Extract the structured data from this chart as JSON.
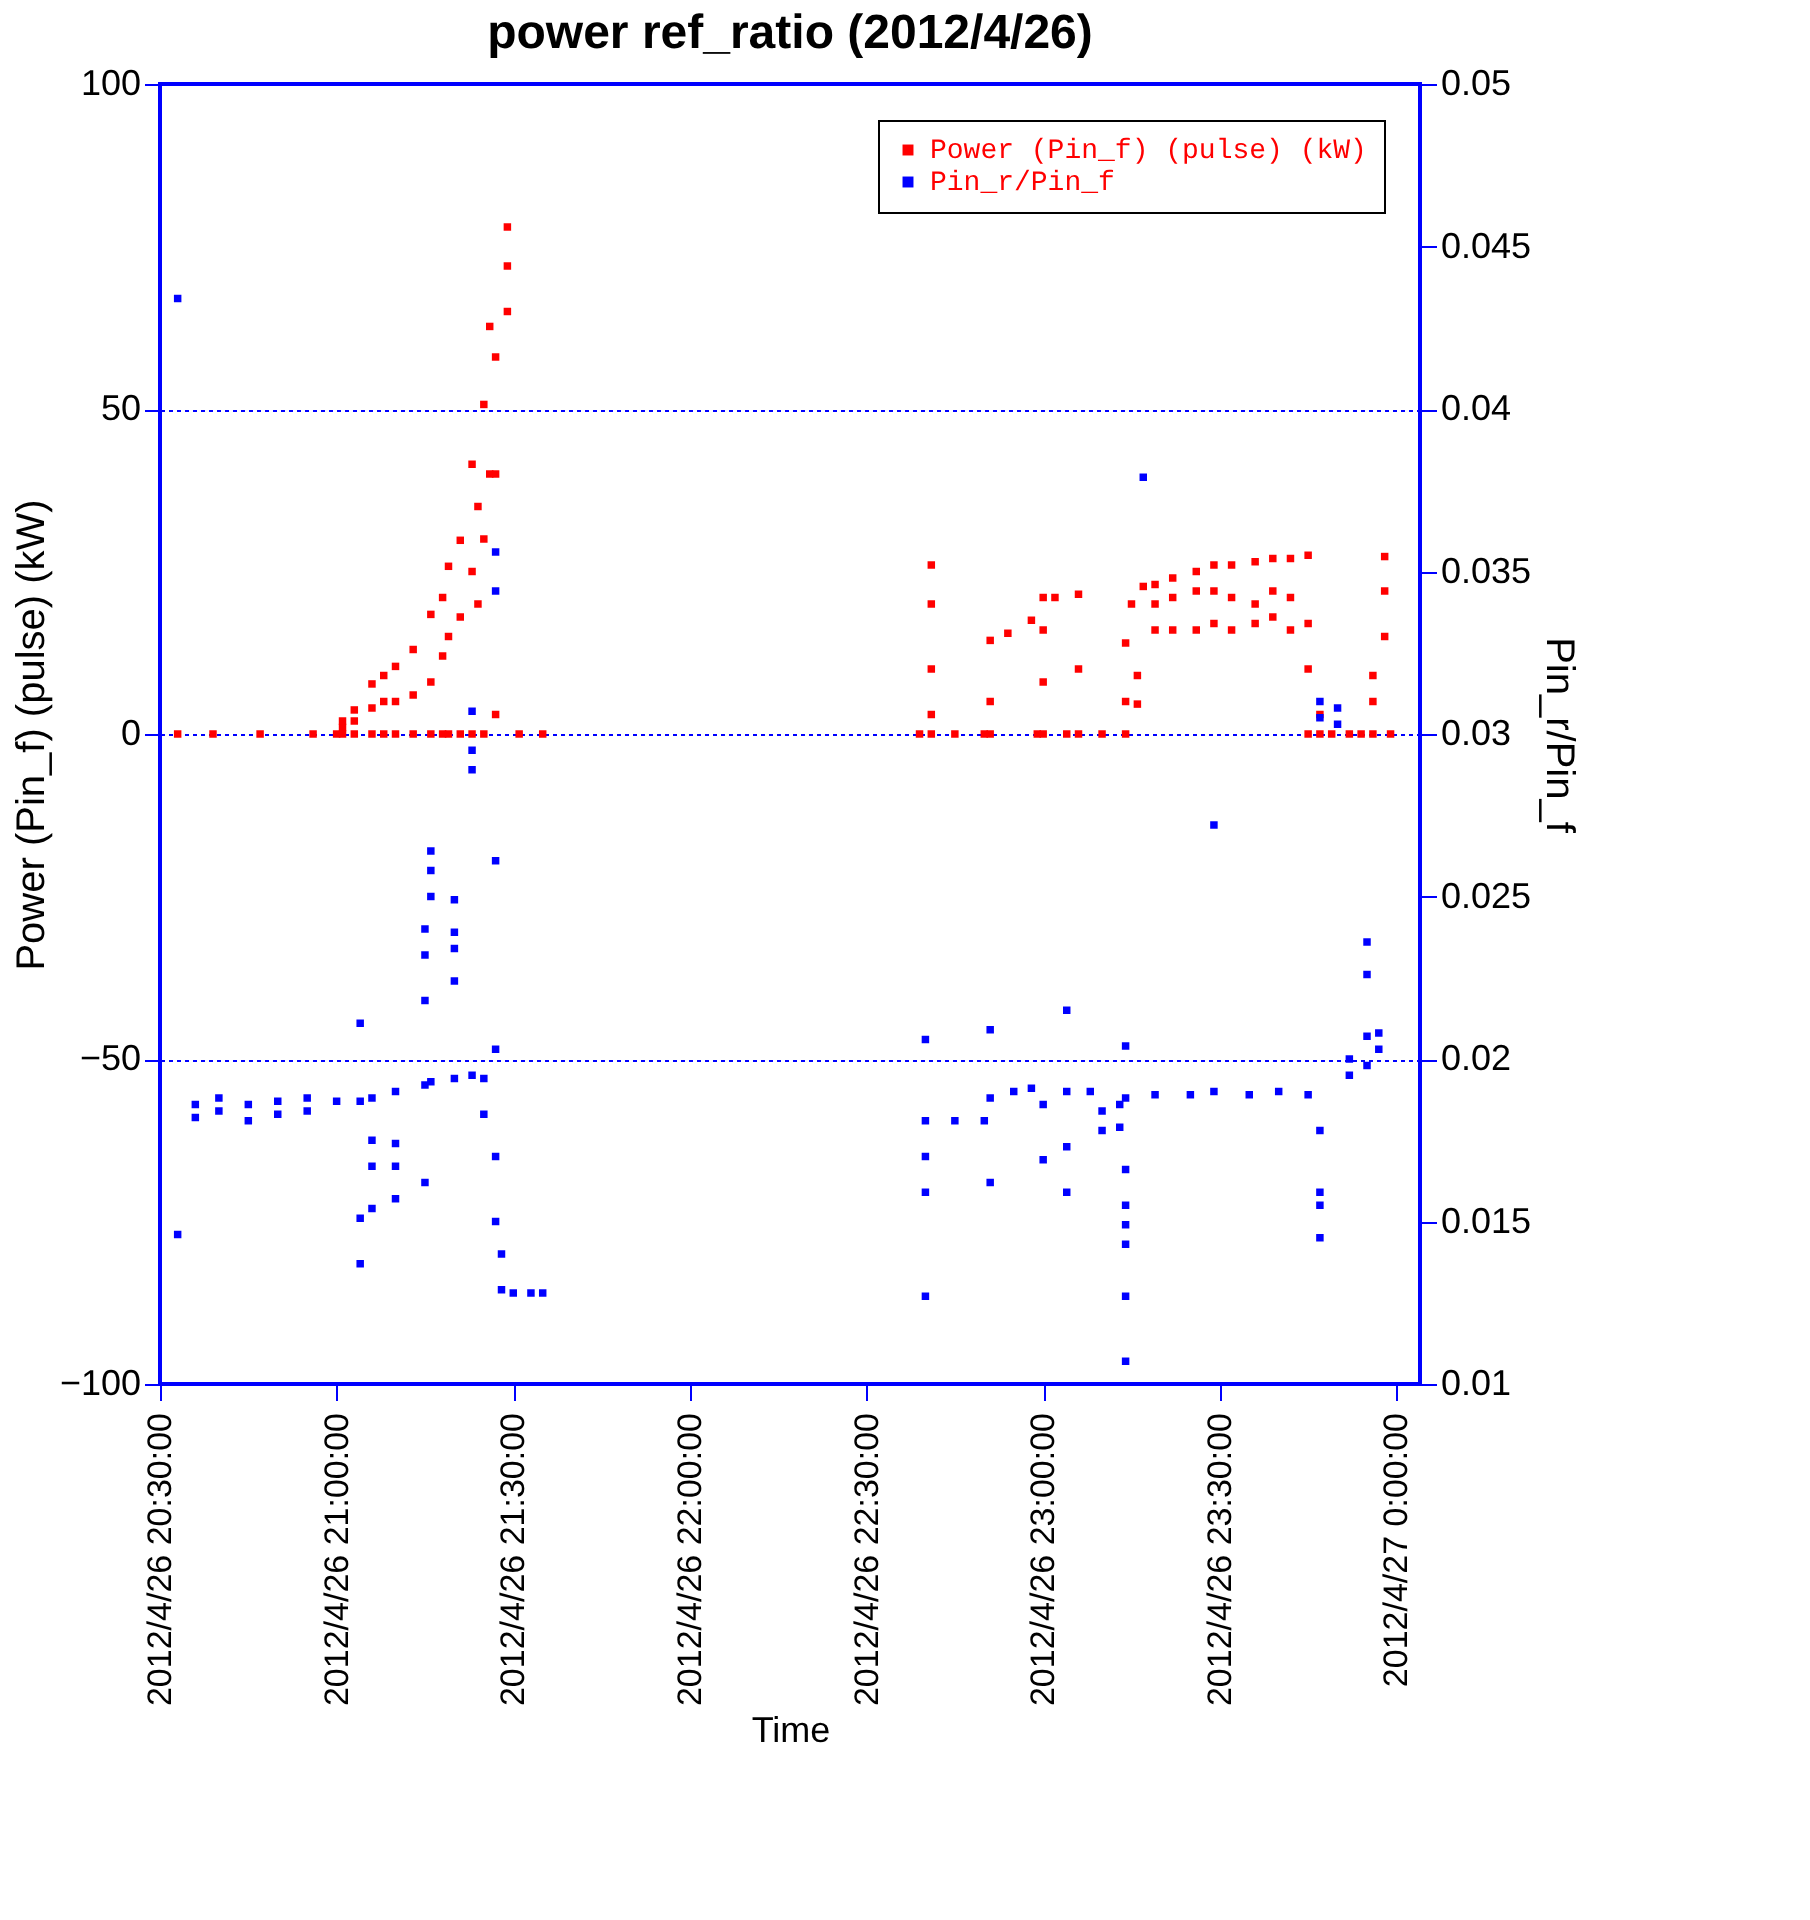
{
  "chart_data": {
    "type": "scatter",
    "title": "power ref_ratio (2012/4/26)",
    "xlabel": "Time",
    "ylabel": "Power (Pin_f) (pulse) (kW)",
    "y2label": "Pin_r/Pin_f",
    "xlim": [
      "2012-04-26T20:30",
      "2012-04-27T00:04"
    ],
    "xticks": [
      {
        "value": "2012-04-26T20:30",
        "label": "2012/4/26 20:30:00"
      },
      {
        "value": "2012-04-26T21:00",
        "label": "2012/4/26 21:00:00"
      },
      {
        "value": "2012-04-26T21:30",
        "label": "2012/4/26 21:30:00"
      },
      {
        "value": "2012-04-26T22:00",
        "label": "2012/4/26 22:00:00"
      },
      {
        "value": "2012-04-26T22:30",
        "label": "2012/4/26 22:30:00"
      },
      {
        "value": "2012-04-26T23:00",
        "label": "2012/4/26 23:00:00"
      },
      {
        "value": "2012-04-26T23:30",
        "label": "2012/4/26 23:30:00"
      },
      {
        "value": "2012-04-27T00:00",
        "label": "2012/4/27 0:00:00"
      }
    ],
    "ylim": [
      -100,
      100
    ],
    "yticks": [
      -100,
      -50,
      0,
      50,
      100
    ],
    "y2lim": [
      0.01,
      0.05
    ],
    "y2ticks": [
      0.01,
      0.015,
      0.02,
      0.025,
      0.03,
      0.035,
      0.04,
      0.045,
      0.05
    ],
    "grid": "y",
    "legend": "top right",
    "marker": "square",
    "series": [
      {
        "name": "Power (Pin_f) (pulse) (kW)",
        "color": "#ff0000",
        "x": [
          "2012-04-26T20:33",
          "2012-04-26T20:39",
          "2012-04-26T20:47",
          "2012-04-26T20:56",
          "2012-04-26T21:00",
          "2012-04-26T21:01",
          "2012-04-26T21:01",
          "2012-04-26T21:01",
          "2012-04-26T21:03",
          "2012-04-26T21:03",
          "2012-04-26T21:03",
          "2012-04-26T21:06",
          "2012-04-26T21:06",
          "2012-04-26T21:06",
          "2012-04-26T21:08",
          "2012-04-26T21:08",
          "2012-04-26T21:08",
          "2012-04-26T21:10",
          "2012-04-26T21:10",
          "2012-04-26T21:10",
          "2012-04-26T21:13",
          "2012-04-26T21:13",
          "2012-04-26T21:13",
          "2012-04-26T21:16",
          "2012-04-26T21:16",
          "2012-04-26T21:16",
          "2012-04-26T21:18",
          "2012-04-26T21:18",
          "2012-04-26T21:18",
          "2012-04-26T21:19",
          "2012-04-26T21:19",
          "2012-04-26T21:19",
          "2012-04-26T21:21",
          "2012-04-26T21:21",
          "2012-04-26T21:21",
          "2012-04-26T21:23",
          "2012-04-26T21:23",
          "2012-04-26T21:23",
          "2012-04-26T21:24",
          "2012-04-26T21:24",
          "2012-04-26T21:25",
          "2012-04-26T21:25",
          "2012-04-26T21:25",
          "2012-04-26T21:26",
          "2012-04-26T21:26",
          "2012-04-26T21:27",
          "2012-04-26T21:27",
          "2012-04-26T21:27",
          "2012-04-26T21:29",
          "2012-04-26T21:29",
          "2012-04-26T21:29",
          "2012-04-26T21:31",
          "2012-04-26T21:35",
          "2012-04-26T22:39",
          "2012-04-26T22:41",
          "2012-04-26T22:41",
          "2012-04-26T22:41",
          "2012-04-26T22:41",
          "2012-04-26T22:41",
          "2012-04-26T22:45",
          "2012-04-26T22:50",
          "2012-04-26T22:51",
          "2012-04-26T22:51",
          "2012-04-26T22:51",
          "2012-04-26T22:54",
          "2012-04-26T22:58",
          "2012-04-26T22:59",
          "2012-04-26T23:00",
          "2012-04-26T23:00",
          "2012-04-26T23:00",
          "2012-04-26T23:00",
          "2012-04-26T23:02",
          "2012-04-26T23:04",
          "2012-04-26T23:06",
          "2012-04-26T23:06",
          "2012-04-26T23:06",
          "2012-04-26T23:10",
          "2012-04-26T23:14",
          "2012-04-26T23:14",
          "2012-04-26T23:14",
          "2012-04-26T23:15",
          "2012-04-26T23:16",
          "2012-04-26T23:16",
          "2012-04-26T23:17",
          "2012-04-26T23:19",
          "2012-04-26T23:19",
          "2012-04-26T23:19",
          "2012-04-26T23:22",
          "2012-04-26T23:22",
          "2012-04-26T23:22",
          "2012-04-26T23:26",
          "2012-04-26T23:26",
          "2012-04-26T23:26",
          "2012-04-26T23:29",
          "2012-04-26T23:29",
          "2012-04-26T23:29",
          "2012-04-26T23:32",
          "2012-04-26T23:32",
          "2012-04-26T23:32",
          "2012-04-26T23:36",
          "2012-04-26T23:36",
          "2012-04-26T23:36",
          "2012-04-26T23:39",
          "2012-04-26T23:39",
          "2012-04-26T23:39",
          "2012-04-26T23:42",
          "2012-04-26T23:42",
          "2012-04-26T23:42",
          "2012-04-26T23:45",
          "2012-04-26T23:45",
          "2012-04-26T23:45",
          "2012-04-26T23:45",
          "2012-04-26T23:47",
          "2012-04-26T23:47",
          "2012-04-26T23:49",
          "2012-04-26T23:52",
          "2012-04-26T23:54",
          "2012-04-26T23:56",
          "2012-04-26T23:56",
          "2012-04-26T23:56",
          "2012-04-26T23:58",
          "2012-04-26T23:58",
          "2012-04-26T23:58",
          "2012-04-26T23:59"
        ],
        "values": [
          0,
          0,
          0,
          0,
          0,
          0,
          1,
          2,
          0,
          2,
          3.7,
          0,
          4,
          7.7,
          0,
          5,
          9,
          0,
          5,
          10.4,
          0,
          6,
          13,
          0,
          8,
          18.4,
          0,
          12,
          21,
          0,
          15,
          25.8,
          0,
          18,
          29.8,
          0,
          25,
          41.5,
          20,
          35,
          0,
          30,
          50.7,
          40,
          62.7,
          3,
          40,
          58,
          65,
          72,
          78,
          0,
          0,
          0,
          0,
          3,
          10,
          20,
          26,
          0,
          0,
          0,
          5,
          14.4,
          15.5,
          17.5,
          0,
          0,
          8,
          16,
          21,
          21,
          0,
          0,
          10,
          21.5,
          0,
          0,
          5,
          14,
          20,
          4.6,
          9,
          22.7,
          16,
          20,
          23,
          16,
          21,
          24,
          16,
          22,
          25,
          17,
          22,
          26,
          16,
          21,
          26,
          17,
          20,
          26.5,
          18,
          22,
          27,
          16,
          21,
          27,
          0,
          10,
          17,
          27.5,
          0,
          3,
          0,
          0,
          0,
          0,
          5,
          9,
          15,
          22,
          27.3,
          0
        ]
      },
      {
        "name": "Pin_r/Pin_f",
        "color": "#0000ff",
        "axis": "y2",
        "x": [
          "2012-04-26T20:33",
          "2012-04-26T20:33",
          "2012-04-26T20:36",
          "2012-04-26T20:36",
          "2012-04-26T20:40",
          "2012-04-26T20:40",
          "2012-04-26T20:45",
          "2012-04-26T20:45",
          "2012-04-26T20:50",
          "2012-04-26T20:50",
          "2012-04-26T20:55",
          "2012-04-26T20:55",
          "2012-04-26T21:00",
          "2012-04-26T21:04",
          "2012-04-26T21:04",
          "2012-04-26T21:04",
          "2012-04-26T21:04",
          "2012-04-26T21:06",
          "2012-04-26T21:06",
          "2012-04-26T21:06",
          "2012-04-26T21:06",
          "2012-04-26T21:10",
          "2012-04-26T21:10",
          "2012-04-26T21:10",
          "2012-04-26T21:10",
          "2012-04-26T21:15",
          "2012-04-26T21:15",
          "2012-04-26T21:15",
          "2012-04-26T21:15",
          "2012-04-26T21:15",
          "2012-04-26T21:16",
          "2012-04-26T21:16",
          "2012-04-26T21:16",
          "2012-04-26T21:16",
          "2012-04-26T21:20",
          "2012-04-26T21:20",
          "2012-04-26T21:20",
          "2012-04-26T21:20",
          "2012-04-26T21:20",
          "2012-04-26T21:23",
          "2012-04-26T21:23",
          "2012-04-26T21:23",
          "2012-04-26T21:23",
          "2012-04-26T21:25",
          "2012-04-26T21:25",
          "2012-04-26T21:27",
          "2012-04-26T21:27",
          "2012-04-26T21:27",
          "2012-04-26T21:27",
          "2012-04-26T21:27",
          "2012-04-26T21:27",
          "2012-04-26T21:28",
          "2012-04-26T21:28",
          "2012-04-26T21:30",
          "2012-04-26T21:33",
          "2012-04-26T21:35",
          "2012-04-26T22:40",
          "2012-04-26T22:40",
          "2012-04-26T22:40",
          "2012-04-26T22:40",
          "2012-04-26T22:40",
          "2012-04-26T22:45",
          "2012-04-26T22:50",
          "2012-04-26T22:51",
          "2012-04-26T22:51",
          "2012-04-26T22:51",
          "2012-04-26T22:55",
          "2012-04-26T22:58",
          "2012-04-26T23:00",
          "2012-04-26T23:00",
          "2012-04-26T23:04",
          "2012-04-26T23:04",
          "2012-04-26T23:04",
          "2012-04-26T23:04",
          "2012-04-26T23:08",
          "2012-04-26T23:10",
          "2012-04-26T23:10",
          "2012-04-26T23:13",
          "2012-04-26T23:13",
          "2012-04-26T23:14",
          "2012-04-26T23:14",
          "2012-04-26T23:14",
          "2012-04-26T23:14",
          "2012-04-26T23:14",
          "2012-04-26T23:14",
          "2012-04-26T23:14",
          "2012-04-26T23:14",
          "2012-04-26T23:17",
          "2012-04-26T23:19",
          "2012-04-26T23:25",
          "2012-04-26T23:29",
          "2012-04-26T23:29",
          "2012-04-26T23:35",
          "2012-04-26T23:40",
          "2012-04-26T23:45",
          "2012-04-26T23:47",
          "2012-04-26T23:47",
          "2012-04-26T23:47",
          "2012-04-26T23:47",
          "2012-04-26T23:47",
          "2012-04-26T23:47",
          "2012-04-26T23:50",
          "2012-04-26T23:50",
          "2012-04-26T23:52",
          "2012-04-26T23:52",
          "2012-04-26T23:55",
          "2012-04-26T23:55",
          "2012-04-26T23:55",
          "2012-04-26T23:55",
          "2012-04-26T23:57",
          "2012-04-26T23:57"
        ],
        "values": [
          0.0434,
          0.0146,
          0.0186,
          0.0182,
          0.0188,
          0.0184,
          0.0186,
          0.0181,
          0.0187,
          0.0183,
          0.0188,
          0.0184,
          0.0187,
          0.0211,
          0.0187,
          0.0151,
          0.0137,
          0.0188,
          0.0175,
          0.0167,
          0.0154,
          0.0167,
          0.0157,
          0.0174,
          0.019,
          0.0162,
          0.0192,
          0.024,
          0.0232,
          0.0218,
          0.0264,
          0.0258,
          0.025,
          0.0193,
          0.0249,
          0.0239,
          0.0234,
          0.0224,
          0.0194,
          0.0295,
          0.0289,
          0.0307,
          0.0195,
          0.0194,
          0.0183,
          0.017,
          0.015,
          0.0356,
          0.0344,
          0.0261,
          0.0203,
          0.014,
          0.0129,
          0.0128,
          0.0128,
          0.0128,
          0.0206,
          0.0181,
          0.017,
          0.0159,
          0.0127,
          0.0181,
          0.0181,
          0.0209,
          0.0188,
          0.0162,
          0.019,
          0.0191,
          0.0169,
          0.0186,
          0.0215,
          0.019,
          0.0173,
          0.0159,
          0.019,
          0.0184,
          0.0178,
          0.0186,
          0.0179,
          0.0204,
          0.0166,
          0.0155,
          0.0149,
          0.0143,
          0.0127,
          0.0107,
          0.0188,
          0.0379,
          0.0189,
          0.0189,
          0.0272,
          0.019,
          0.0189,
          0.019,
          0.0189,
          0.0178,
          0.0159,
          0.0155,
          0.0145,
          0.031,
          0.0305,
          0.0303,
          0.0308,
          0.02,
          0.0195,
          0.0207,
          0.0198,
          0.0236,
          0.0226,
          0.0208,
          0.0203
        ]
      }
    ]
  }
}
